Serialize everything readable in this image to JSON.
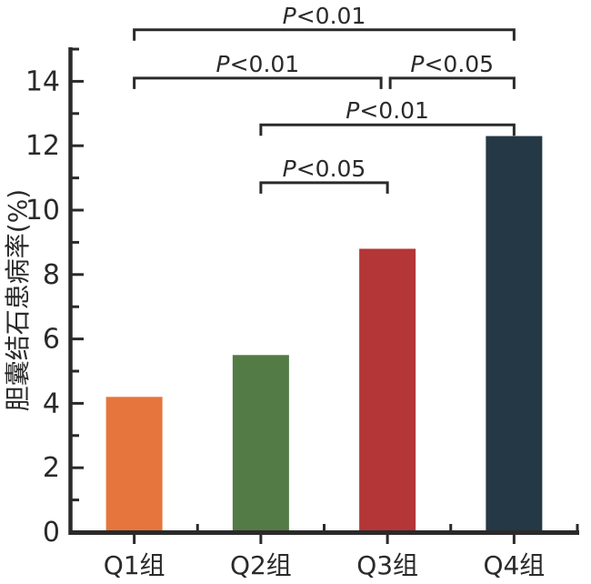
{
  "chart_data": {
    "type": "bar",
    "title": "",
    "xlabel": "",
    "ylabel": "胆囊结石患病率(%)",
    "categories": [
      "Q1组",
      "Q2组",
      "Q3组",
      "Q4组"
    ],
    "values": [
      4.2,
      5.5,
      8.8,
      12.3
    ],
    "bar_colors": [
      "#e5753d",
      "#537b45",
      "#b43637",
      "#253845"
    ],
    "axis_color": "#2a2a2a",
    "background_color": "#ffffff",
    "ylim": [
      0,
      15
    ],
    "y_major_ticks": [
      0,
      2,
      4,
      6,
      8,
      10,
      12,
      14
    ],
    "y_minor_ticks": [
      1,
      3,
      5,
      7,
      9,
      11,
      13,
      15
    ],
    "grid": false,
    "legend": false,
    "significance_brackets": [
      {
        "from": "Q1组",
        "to": "Q4组",
        "label": "P<0.01",
        "y": 15.6
      },
      {
        "from": "Q1组",
        "to": "Q3组",
        "label": "P<0.01",
        "y": 14.1
      },
      {
        "from": "Q3组",
        "to": "Q4组",
        "label": "P<0.05",
        "y": 14.1
      },
      {
        "from": "Q2组",
        "to": "Q4组",
        "label": "P<0.01",
        "y": 12.65
      },
      {
        "from": "Q2组",
        "to": "Q3组",
        "label": "P<0.05",
        "y": 10.85
      }
    ]
  }
}
